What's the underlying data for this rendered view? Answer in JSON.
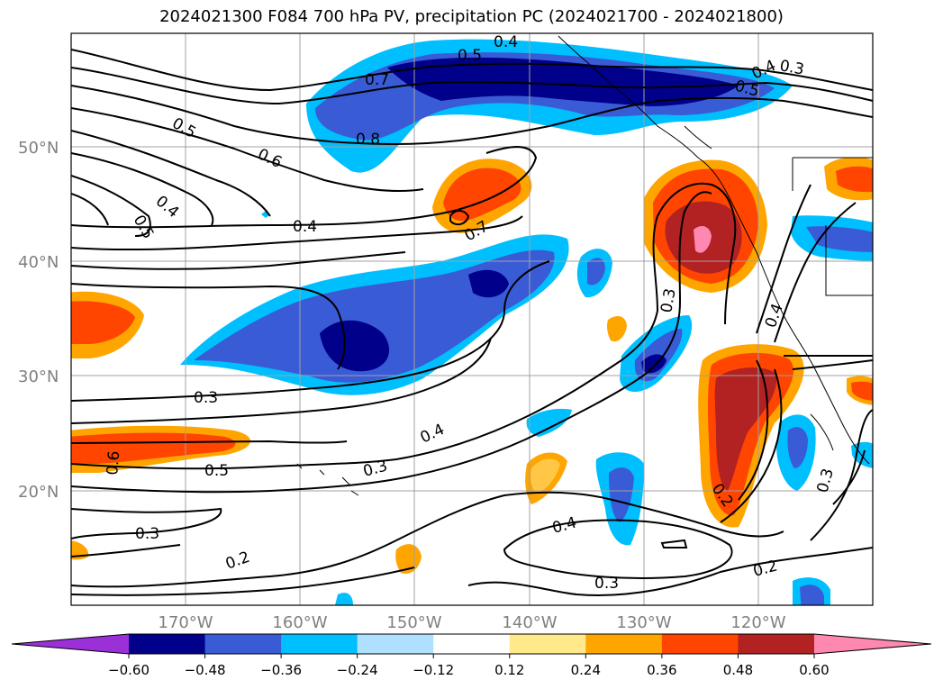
{
  "title": "2024021300 F084 700 hPa PV, precipitation PC (2024021700 - 2024021800)",
  "latitude_labels": [
    "50°N",
    "40°N",
    "30°N",
    "20°N"
  ],
  "longitude_labels": [
    "170°W",
    "160°W",
    "150°W",
    "140°W",
    "130°W",
    "120°W"
  ],
  "colorbar": {
    "ticks": [
      "−0.60",
      "−0.48",
      "−0.36",
      "−0.24",
      "−0.12",
      "0.12",
      "0.24",
      "0.36",
      "0.48",
      "0.60"
    ],
    "colors": [
      "#9b30d8",
      "#00008b",
      "#3a5bd6",
      "#00bfff",
      "#b0e0ff",
      "#ffffff",
      "#ffe98a",
      "#ffa500",
      "#ff4500",
      "#b22222",
      "#ff88b0"
    ]
  },
  "contour_labels": [
    "0.4",
    "0.5",
    "0.7",
    "0.8",
    "0.5",
    "0.6",
    "0.4",
    "0.5",
    "0.4",
    "0.7",
    "0.5",
    "0.4",
    "0.3",
    "0.3",
    "0.4",
    "0.3",
    "0.6",
    "0.5",
    "0.3",
    "0.4",
    "0.2",
    "0.3",
    "0.4",
    "0.3",
    "0.2",
    "0.2",
    "0.3"
  ]
}
